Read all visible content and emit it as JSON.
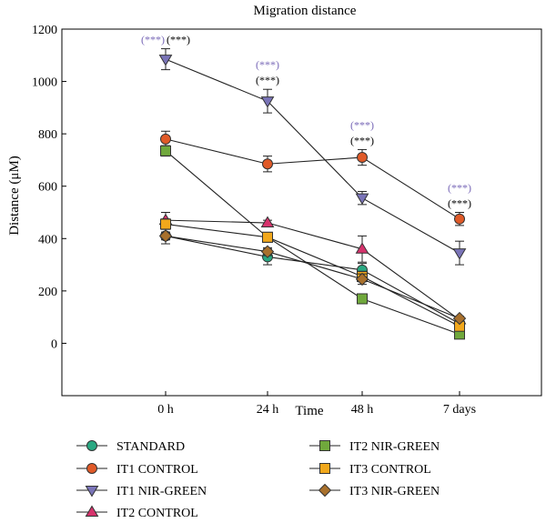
{
  "chart_data": {
    "type": "line",
    "title": "Migration distance",
    "xlabel": "Time",
    "ylabel": "Distance (μM)",
    "categories": [
      "0 h",
      "24 h",
      "48 h",
      "7 days"
    ],
    "ylim": [
      -200,
      1200
    ],
    "yticks": [
      0,
      200,
      400,
      600,
      800,
      1000,
      1200
    ],
    "grid": false,
    "legend_position": "bottom",
    "series": [
      {
        "name": "STANDARD",
        "marker": "circle",
        "color": "#2aa882",
        "values": [
          410,
          330,
          280,
          75
        ],
        "errors": [
          30,
          30,
          25,
          10
        ]
      },
      {
        "name": "IT1 CONTROL",
        "marker": "circle",
        "color": "#e05a28",
        "values": [
          780,
          685,
          710,
          475
        ],
        "errors": [
          30,
          30,
          30,
          25
        ]
      },
      {
        "name": "IT1 NIR-GREEN",
        "marker": "triangle-down",
        "color": "#7a74b8",
        "values": [
          1085,
          925,
          555,
          345
        ],
        "errors": [
          40,
          45,
          25,
          45
        ]
      },
      {
        "name": "IT2 CONTROL",
        "marker": "triangle-up",
        "color": "#d6336c",
        "values": [
          470,
          460,
          360,
          90
        ],
        "errors": [
          30,
          10,
          50,
          10
        ]
      },
      {
        "name": "IT2 NIR-GREEN",
        "marker": "square",
        "color": "#70a83c",
        "values": [
          735,
          405,
          170,
          35
        ],
        "errors": [
          20,
          10,
          10,
          8
        ]
      },
      {
        "name": "IT3 CONTROL",
        "marker": "square",
        "color": "#f2a81c",
        "values": [
          455,
          405,
          255,
          65
        ],
        "errors": [
          20,
          10,
          20,
          8
        ]
      },
      {
        "name": "IT3 NIR-GREEN",
        "marker": "diamond",
        "color": "#a8702c",
        "values": [
          410,
          350,
          245,
          95
        ],
        "errors": [
          15,
          15,
          20,
          8
        ]
      }
    ],
    "annotations": [
      {
        "category": "0 h",
        "series": "IT1 NIR-GREEN",
        "text": "(***)",
        "color": "#7a6ab8",
        "row": 0,
        "offset": -1
      },
      {
        "category": "0 h",
        "series": "IT1 NIR-GREEN",
        "text": "(***)",
        "color": "#000000",
        "row": 0,
        "offset": 1
      },
      {
        "category": "24 h",
        "series": "IT1 NIR-GREEN",
        "text": "(***)",
        "color": "#7a6ab8",
        "row": 1,
        "offset": 0
      },
      {
        "category": "24 h",
        "series": "IT1 NIR-GREEN",
        "text": "(***)",
        "color": "#000000",
        "row": 0,
        "offset": 0
      },
      {
        "category": "48 h",
        "series": "IT1 CONTROL",
        "text": "(***)",
        "color": "#7a6ab8",
        "row": 1,
        "offset": 0
      },
      {
        "category": "48 h",
        "series": "IT1 CONTROL",
        "text": "(***)",
        "color": "#000000",
        "row": 0,
        "offset": 0
      },
      {
        "category": "7 days",
        "series": "IT1 CONTROL",
        "text": "(***)",
        "color": "#7a6ab8",
        "row": 1,
        "offset": 0
      },
      {
        "category": "7 days",
        "series": "IT1 CONTROL",
        "text": "(***)",
        "color": "#000000",
        "row": 0,
        "offset": 0
      }
    ]
  }
}
